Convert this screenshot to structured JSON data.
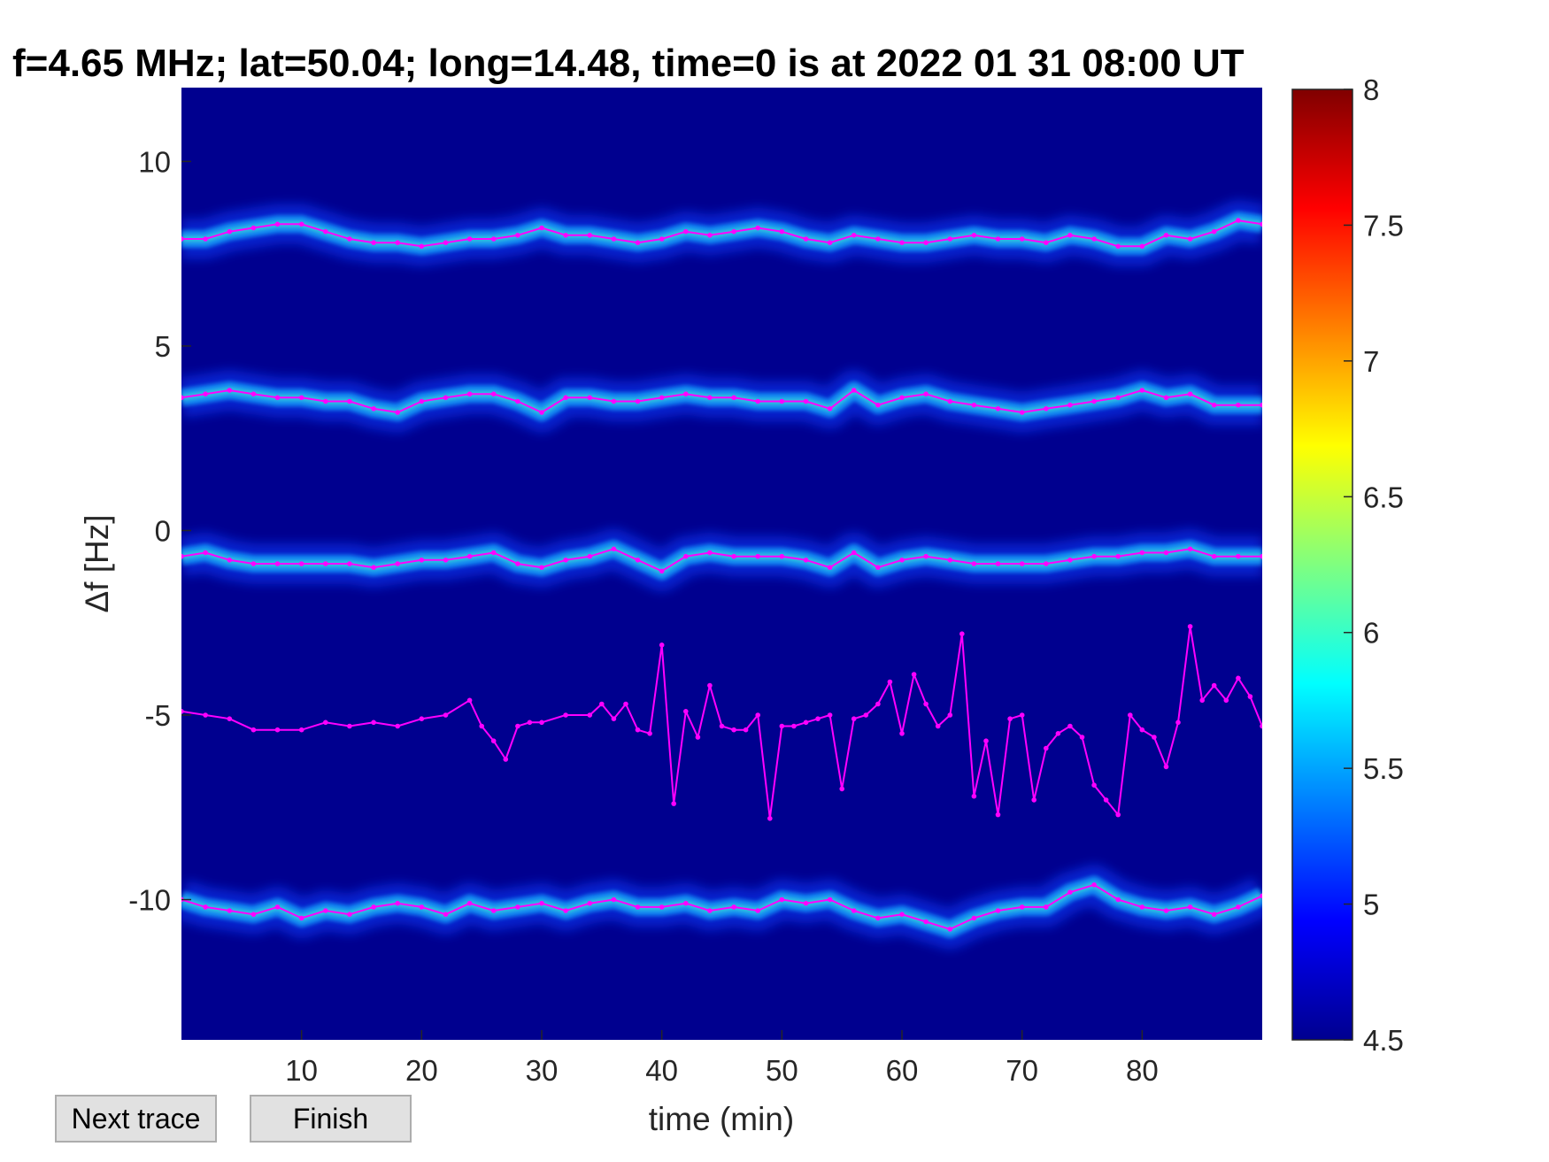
{
  "buttons": {
    "next": "Next trace",
    "finish": "Finish"
  },
  "chart_data": {
    "type": "heatmap",
    "title": "f=4.65 MHz;  lat=50.04; long=14.48, time=0 is at 2022 01 31 08:00 UT",
    "xlabel": "time (min)",
    "ylabel": "Δf [Hz]",
    "xlim": [
      0,
      90
    ],
    "ylim": [
      -13.8,
      12
    ],
    "xticks": [
      10,
      20,
      30,
      40,
      50,
      60,
      70,
      80
    ],
    "yticks": [
      10,
      5,
      0,
      -5,
      -10
    ],
    "colorbar": {
      "range": [
        4.5,
        8
      ],
      "ticks": [
        "8",
        "7.5",
        "7",
        "6.5",
        "6",
        "5.5",
        "5",
        "4.5"
      ],
      "colormap": "jet"
    },
    "background_color": "#00008f",
    "bands_center_hz": [
      8.0,
      3.6,
      -0.7,
      -10.2
    ],
    "trace_color": "#ff00ff",
    "series": [
      {
        "x": [
          0,
          2,
          4,
          6,
          8,
          10,
          12,
          14,
          16,
          18,
          20,
          22,
          24,
          26,
          28,
          30,
          32,
          34,
          36,
          38,
          40,
          42,
          44,
          46,
          48,
          50,
          52,
          54,
          56,
          58,
          60,
          62,
          64,
          66,
          68,
          70,
          72,
          74,
          76,
          78,
          80,
          82,
          84,
          86,
          88,
          90
        ],
        "y": [
          7.9,
          7.9,
          8.1,
          8.2,
          8.3,
          8.3,
          8.1,
          7.9,
          7.8,
          7.8,
          7.7,
          7.8,
          7.9,
          7.9,
          8.0,
          8.2,
          8.0,
          8.0,
          7.9,
          7.8,
          7.9,
          8.1,
          8.0,
          8.1,
          8.2,
          8.1,
          7.9,
          7.8,
          8.0,
          7.9,
          7.8,
          7.8,
          7.9,
          8.0,
          7.9,
          7.9,
          7.8,
          8.0,
          7.9,
          7.7,
          7.7,
          8.0,
          7.9,
          8.1,
          8.4,
          8.3
        ]
      },
      {
        "x": [
          0,
          2,
          4,
          6,
          8,
          10,
          12,
          14,
          16,
          18,
          20,
          22,
          24,
          26,
          28,
          30,
          32,
          34,
          36,
          38,
          40,
          42,
          44,
          46,
          48,
          50,
          52,
          54,
          56,
          58,
          60,
          62,
          64,
          66,
          68,
          70,
          72,
          74,
          76,
          78,
          80,
          82,
          84,
          86,
          88,
          90
        ],
        "y": [
          3.6,
          3.7,
          3.8,
          3.7,
          3.6,
          3.6,
          3.5,
          3.5,
          3.3,
          3.2,
          3.5,
          3.6,
          3.7,
          3.7,
          3.5,
          3.2,
          3.6,
          3.6,
          3.5,
          3.5,
          3.6,
          3.7,
          3.6,
          3.6,
          3.5,
          3.5,
          3.5,
          3.3,
          3.8,
          3.4,
          3.6,
          3.7,
          3.5,
          3.4,
          3.3,
          3.2,
          3.3,
          3.4,
          3.5,
          3.6,
          3.8,
          3.6,
          3.7,
          3.4,
          3.4,
          3.4
        ]
      },
      {
        "x": [
          0,
          2,
          4,
          6,
          8,
          10,
          12,
          14,
          16,
          18,
          20,
          22,
          24,
          26,
          28,
          30,
          32,
          34,
          36,
          38,
          40,
          42,
          44,
          46,
          48,
          50,
          52,
          54,
          56,
          58,
          60,
          62,
          64,
          66,
          68,
          70,
          72,
          74,
          76,
          78,
          80,
          82,
          84,
          86,
          88,
          90
        ],
        "y": [
          -0.7,
          -0.6,
          -0.8,
          -0.9,
          -0.9,
          -0.9,
          -0.9,
          -0.9,
          -1.0,
          -0.9,
          -0.8,
          -0.8,
          -0.7,
          -0.6,
          -0.9,
          -1.0,
          -0.8,
          -0.7,
          -0.5,
          -0.8,
          -1.1,
          -0.7,
          -0.6,
          -0.7,
          -0.7,
          -0.7,
          -0.8,
          -1.0,
          -0.6,
          -1.0,
          -0.8,
          -0.7,
          -0.8,
          -0.9,
          -0.9,
          -0.9,
          -0.9,
          -0.8,
          -0.7,
          -0.7,
          -0.6,
          -0.6,
          -0.5,
          -0.7,
          -0.7,
          -0.7
        ]
      },
      {
        "x": [
          0,
          2,
          4,
          6,
          8,
          10,
          12,
          14,
          16,
          18,
          20,
          22,
          24,
          25,
          26,
          27,
          28,
          29,
          30,
          32,
          34,
          35,
          36,
          37,
          38,
          39,
          40,
          41,
          42,
          43,
          44,
          45,
          46,
          47,
          48,
          49,
          50,
          51,
          52,
          53,
          54,
          55,
          56,
          57,
          58,
          59,
          60,
          61,
          62,
          63,
          64,
          65,
          66,
          67,
          68,
          69,
          70,
          71,
          72,
          73,
          74,
          75,
          76,
          77,
          78,
          79,
          80,
          81,
          82,
          83,
          84,
          85,
          86,
          87,
          88,
          89,
          90
        ],
        "y": [
          -4.9,
          -5.0,
          -5.1,
          -5.4,
          -5.4,
          -5.4,
          -5.2,
          -5.3,
          -5.2,
          -5.3,
          -5.1,
          -5.0,
          -4.6,
          -5.3,
          -5.7,
          -6.2,
          -5.3,
          -5.2,
          -5.2,
          -5.0,
          -5.0,
          -4.7,
          -5.1,
          -4.7,
          -5.4,
          -5.5,
          -3.1,
          -7.4,
          -4.9,
          -5.6,
          -4.2,
          -5.3,
          -5.4,
          -5.4,
          -5.0,
          -7.8,
          -5.3,
          -5.3,
          -5.2,
          -5.1,
          -5.0,
          -7.0,
          -5.1,
          -5.0,
          -4.7,
          -4.1,
          -5.5,
          -3.9,
          -4.7,
          -5.3,
          -5.0,
          -2.8,
          -7.2,
          -5.7,
          -7.7,
          -5.1,
          -5.0,
          -7.3,
          -5.9,
          -5.5,
          -5.3,
          -5.6,
          -6.9,
          -7.3,
          -7.7,
          -5.0,
          -5.4,
          -5.6,
          -6.4,
          -5.2,
          -2.6,
          -4.6,
          -4.2,
          -4.6,
          -4.0,
          -4.5,
          -5.3
        ]
      },
      {
        "x": [
          0,
          2,
          4,
          6,
          8,
          10,
          12,
          14,
          16,
          18,
          20,
          22,
          24,
          26,
          28,
          30,
          32,
          34,
          36,
          38,
          40,
          42,
          44,
          46,
          48,
          50,
          52,
          54,
          56,
          58,
          60,
          62,
          64,
          66,
          68,
          70,
          72,
          74,
          76,
          78,
          80,
          82,
          84,
          86,
          88,
          90
        ],
        "y": [
          -10.0,
          -10.2,
          -10.3,
          -10.4,
          -10.2,
          -10.5,
          -10.3,
          -10.4,
          -10.2,
          -10.1,
          -10.2,
          -10.4,
          -10.1,
          -10.3,
          -10.2,
          -10.1,
          -10.3,
          -10.1,
          -10.0,
          -10.2,
          -10.2,
          -10.1,
          -10.3,
          -10.2,
          -10.3,
          -10.0,
          -10.1,
          -10.0,
          -10.3,
          -10.5,
          -10.4,
          -10.6,
          -10.8,
          -10.5,
          -10.3,
          -10.2,
          -10.2,
          -9.8,
          -9.6,
          -10.0,
          -10.2,
          -10.3,
          -10.2,
          -10.4,
          -10.2,
          -9.9
        ]
      }
    ]
  }
}
